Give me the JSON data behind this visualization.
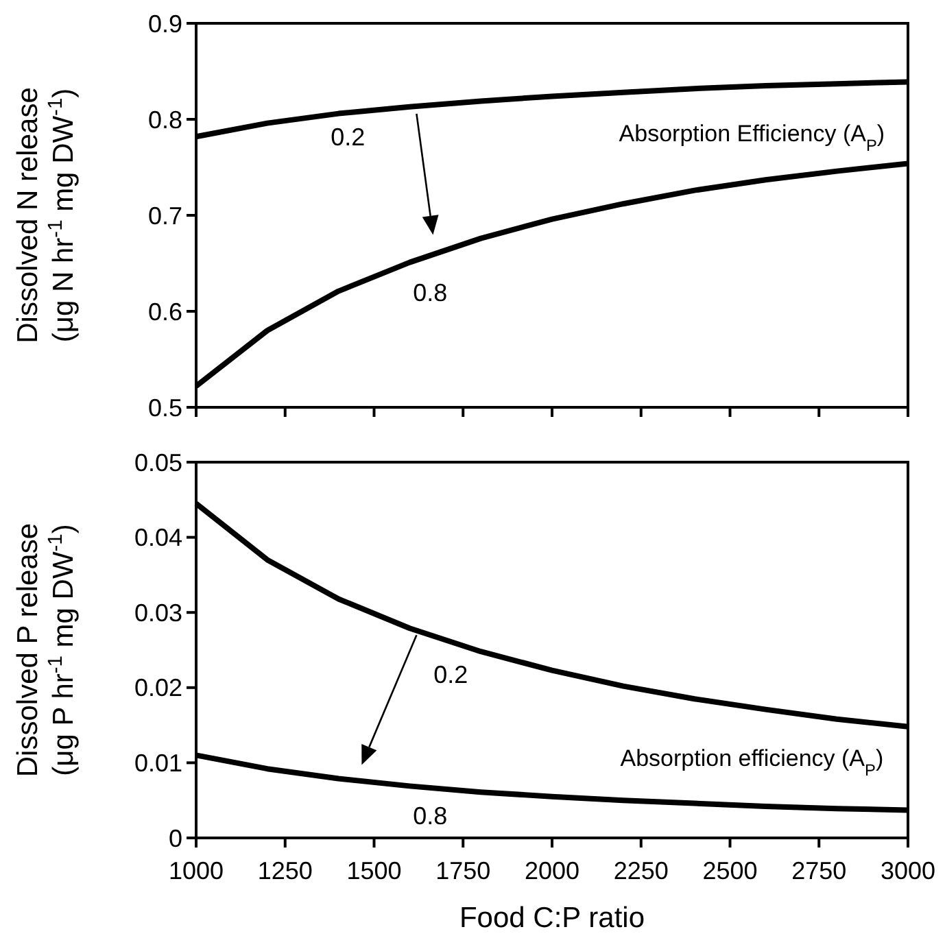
{
  "chart_data": [
    {
      "type": "line",
      "ylabel": "Dissolved N release\n(μg N hr$^{-1}$ mg DW$^{-1}$)",
      "x": [
        1000,
        1200,
        1400,
        1600,
        1800,
        2000,
        2200,
        2400,
        2600,
        2800,
        3000
      ],
      "xlim": [
        1000,
        3000
      ],
      "xticks": [
        {
          "value": 1000,
          "label": null
        },
        {
          "value": 1250,
          "label": null
        },
        {
          "value": 1500,
          "label": null
        },
        {
          "value": 1750,
          "label": null
        },
        {
          "value": 2000,
          "label": null
        },
        {
          "value": 2250,
          "label": null
        },
        {
          "value": 2500,
          "label": null
        },
        {
          "value": 2750,
          "label": null
        },
        {
          "value": 3000,
          "label": null
        }
      ],
      "ylim": [
        0.5,
        0.9
      ],
      "yticks": [
        0.5,
        0.6,
        0.7,
        0.8,
        0.9
      ],
      "tick_labels": "y",
      "grid": false,
      "marker": "none",
      "line_style": "solid",
      "series": [
        {
          "name": "0.2",
          "color": "#000000",
          "values": [
            0.782,
            0.796,
            0.806,
            0.813,
            0.819,
            0.824,
            0.828,
            0.832,
            0.835,
            0.837,
            0.839
          ]
        },
        {
          "name": "0.8",
          "color": "#000000",
          "values": [
            0.522,
            0.58,
            0.621,
            0.651,
            0.676,
            0.696,
            0.712,
            0.726,
            0.737,
            0.746,
            0.754
          ]
        }
      ],
      "annotations": [
        "Absorption Efficiency (A$_{P}$)"
      ]
    },
    {
      "type": "line",
      "xlabel": "Food C:P ratio",
      "ylabel": "Dissolved P release\n(μg P hr$^{-1}$ mg DW$^{-1}$)",
      "x": [
        1000,
        1200,
        1400,
        1600,
        1800,
        2000,
        2200,
        2400,
        2600,
        2800,
        3000
      ],
      "xlim": [
        1000,
        3000
      ],
      "xticks": [
        1000,
        1250,
        1500,
        1750,
        2000,
        2250,
        2500,
        2750,
        3000
      ],
      "ylim": [
        0,
        0.05
      ],
      "yticks": [
        0,
        0.01,
        0.02,
        0.03,
        0.04,
        0.05
      ],
      "grid": false,
      "marker": "none",
      "line_style": "solid",
      "series": [
        {
          "name": "0.2",
          "color": "#000000",
          "values": [
            0.0445,
            0.037,
            0.0318,
            0.0279,
            0.0248,
            0.0223,
            0.0202,
            0.0185,
            0.0171,
            0.0158,
            0.0148
          ]
        },
        {
          "name": "0.8",
          "color": "#000000",
          "values": [
            0.011,
            0.0092,
            0.0079,
            0.0069,
            0.0061,
            0.0055,
            0.005,
            0.0046,
            0.0042,
            0.0039,
            0.0037
          ]
        }
      ],
      "annotations": [
        "Absorption efficiency (A$_{P}$)"
      ]
    }
  ]
}
